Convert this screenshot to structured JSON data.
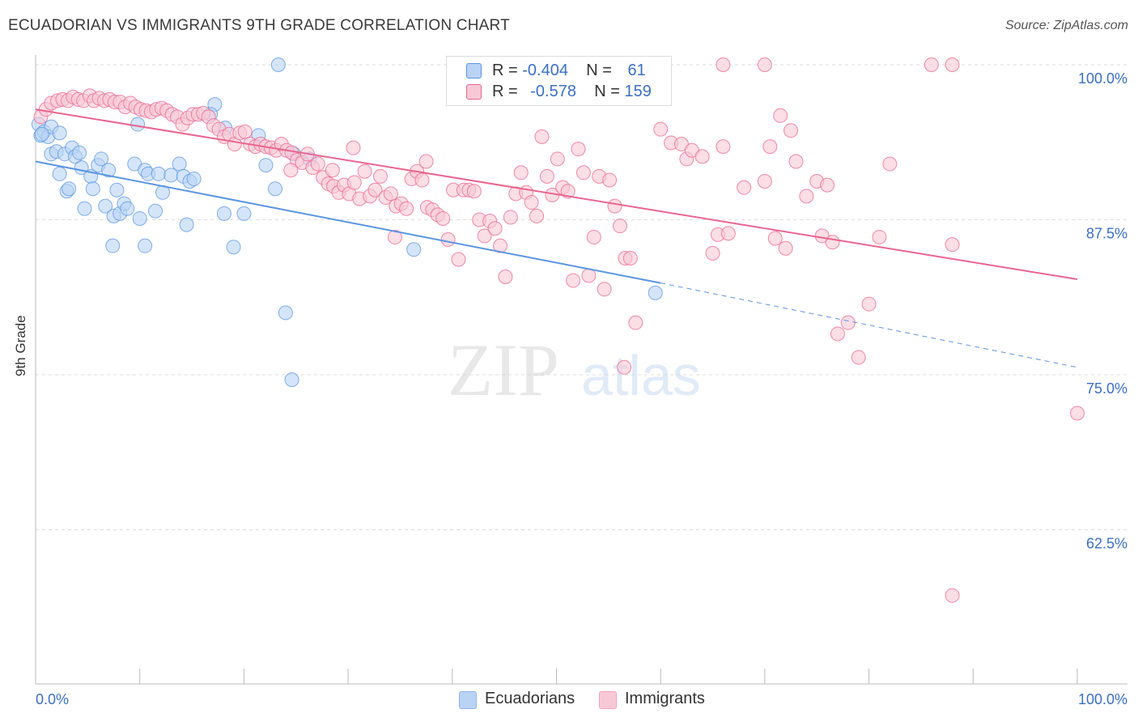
{
  "header": {
    "title": "ECUADORIAN VS IMMIGRANTS 9TH GRADE CORRELATION CHART",
    "source": "Source: ZipAtlas.com"
  },
  "legend": {
    "rows": [
      {
        "r_label": "R = ",
        "r_value": "-0.404",
        "n_label": "N = ",
        "n_value": "61",
        "color": "#a9c8f0"
      },
      {
        "r_label": "R = ",
        "r_value": "-0.578",
        "n_label": "N = ",
        "n_value": "159",
        "color": "#f7b9cb"
      }
    ]
  },
  "bottom_legend": {
    "items": [
      {
        "label": "Ecuadorians",
        "color": "#b9d3f5"
      },
      {
        "label": "Immigrants",
        "color": "#f9c8d6"
      }
    ]
  },
  "watermark": {
    "zip": "ZIP",
    "atlas": "atlas"
  },
  "chart_data": {
    "type": "scatter",
    "title": "ECUADORIAN VS IMMIGRANTS 9TH GRADE CORRELATION CHART",
    "xlabel": "",
    "ylabel": "9th Grade",
    "xlim": [
      0,
      100
    ],
    "ylim": [
      50,
      101.5
    ],
    "x_tick_labels": [
      "0.0%",
      "100.0%"
    ],
    "y_ticks": [
      100,
      87.5,
      75,
      62.5
    ],
    "y_tick_labels": [
      "100.0%",
      "87.5%",
      "75.0%",
      "62.5%"
    ],
    "grid": true,
    "legend_position": "top-center",
    "series": [
      {
        "name": "Ecuadorians",
        "color": "#5b95e0",
        "fill": "#b9d3f5",
        "r": -0.404,
        "n": 61,
        "trend": {
          "x0": 0,
          "y0": 92.2,
          "x1": 60,
          "y1": 82.4,
          "dashed_to_x": 100,
          "dashed_to_y": 75.6
        },
        "points": [
          [
            0.3,
            95.2
          ],
          [
            0.5,
            94.3
          ],
          [
            0.8,
            94.6
          ],
          [
            1.2,
            94.2
          ],
          [
            1.5,
            92.8
          ],
          [
            2,
            93
          ],
          [
            2.3,
            91.2
          ],
          [
            2.8,
            92.8
          ],
          [
            3,
            89.8
          ],
          [
            3.2,
            90
          ],
          [
            3.5,
            93.3
          ],
          [
            3.8,
            92.6
          ],
          [
            4.2,
            92.9
          ],
          [
            4.4,
            91.7
          ],
          [
            4.7,
            88.4
          ],
          [
            5.3,
            91
          ],
          [
            5.5,
            90
          ],
          [
            6,
            91.9
          ],
          [
            6.3,
            92.4
          ],
          [
            6.7,
            88.6
          ],
          [
            7,
            91.5
          ],
          [
            7.5,
            87.8
          ],
          [
            7.8,
            89.9
          ],
          [
            8.1,
            88
          ],
          [
            8.5,
            88.8
          ],
          [
            8.8,
            88.4
          ],
          [
            9.5,
            92
          ],
          [
            10,
            87.6
          ],
          [
            9.8,
            95.2
          ],
          [
            10.5,
            91.5
          ],
          [
            10.8,
            91.2
          ],
          [
            11.5,
            88.2
          ],
          [
            11.8,
            91.2
          ],
          [
            12.2,
            89.7
          ],
          [
            13,
            91.1
          ],
          [
            13.8,
            92
          ],
          [
            14.2,
            91
          ],
          [
            14.8,
            90.6
          ],
          [
            14.5,
            87.1
          ],
          [
            15.2,
            90.8
          ],
          [
            17.2,
            96.8
          ],
          [
            16.8,
            96
          ],
          [
            18.2,
            94.9
          ],
          [
            20,
            88
          ],
          [
            19,
            85.3
          ],
          [
            21.4,
            94.3
          ],
          [
            23.3,
            100
          ],
          [
            23,
            90
          ],
          [
            22.1,
            91.9
          ],
          [
            24,
            80
          ],
          [
            24.8,
            92.8
          ],
          [
            24.6,
            74.6
          ],
          [
            26.3,
            92.4
          ],
          [
            36.3,
            85.1
          ],
          [
            59.5,
            81.6
          ],
          [
            10.5,
            85.4
          ],
          [
            7.4,
            85.4
          ],
          [
            1.5,
            95
          ],
          [
            0.6,
            94.4
          ],
          [
            2.3,
            94.5
          ],
          [
            18.1,
            88
          ]
        ]
      },
      {
        "name": "Immigrants",
        "color": "#e8668f",
        "fill": "#f9c8d6",
        "r": -0.578,
        "n": 159,
        "trend": {
          "x0": 0,
          "y0": 96.4,
          "x1": 100,
          "y1": 82.7
        },
        "points": [
          [
            0.5,
            95.8
          ],
          [
            1,
            96.4
          ],
          [
            1.5,
            96.9
          ],
          [
            2.1,
            97.1
          ],
          [
            2.6,
            97.2
          ],
          [
            3.1,
            97.1
          ],
          [
            3.6,
            97.4
          ],
          [
            4.1,
            97.2
          ],
          [
            4.6,
            97.1
          ],
          [
            5.2,
            97.5
          ],
          [
            5.6,
            97.1
          ],
          [
            6.1,
            97.3
          ],
          [
            6.6,
            97.1
          ],
          [
            7.1,
            97.2
          ],
          [
            7.6,
            97
          ],
          [
            8.1,
            97
          ],
          [
            8.6,
            96.6
          ],
          [
            9.1,
            96.9
          ],
          [
            9.6,
            96.6
          ],
          [
            10.1,
            96.4
          ],
          [
            10.6,
            96.3
          ],
          [
            11.1,
            96.2
          ],
          [
            11.6,
            96.4
          ],
          [
            12.1,
            96.5
          ],
          [
            12.6,
            96.3
          ],
          [
            13.1,
            96
          ],
          [
            13.6,
            95.8
          ],
          [
            14.1,
            95.2
          ],
          [
            14.6,
            95.7
          ],
          [
            15.1,
            96
          ],
          [
            15.6,
            96
          ],
          [
            16.1,
            96.1
          ],
          [
            16.6,
            95.8
          ],
          [
            17.1,
            95.1
          ],
          [
            17.6,
            94.8
          ],
          [
            18.1,
            94.2
          ],
          [
            18.6,
            94.4
          ],
          [
            19.1,
            93.6
          ],
          [
            19.6,
            94.5
          ],
          [
            20.1,
            94.6
          ],
          [
            20.6,
            93.6
          ],
          [
            21.1,
            93.4
          ],
          [
            21.6,
            93.6
          ],
          [
            22.1,
            93.4
          ],
          [
            22.6,
            93.3
          ],
          [
            23.1,
            93.1
          ],
          [
            23.6,
            93.6
          ],
          [
            24.1,
            93.1
          ],
          [
            24.6,
            92.9
          ],
          [
            25.1,
            92.3
          ],
          [
            25.6,
            92.1
          ],
          [
            26.1,
            92.8
          ],
          [
            26.6,
            91.7
          ],
          [
            27.1,
            92
          ],
          [
            27.6,
            90.9
          ],
          [
            28.1,
            90.4
          ],
          [
            28.6,
            90.2
          ],
          [
            29.1,
            89.7
          ],
          [
            29.6,
            90.3
          ],
          [
            30.1,
            89.6
          ],
          [
            30.6,
            90.5
          ],
          [
            31.1,
            89.2
          ],
          [
            31.6,
            91.4
          ],
          [
            32.1,
            89.4
          ],
          [
            32.6,
            89.9
          ],
          [
            33.1,
            91
          ],
          [
            33.6,
            89.3
          ],
          [
            34.1,
            89.6
          ],
          [
            34.6,
            88.6
          ],
          [
            35.1,
            88.8
          ],
          [
            35.6,
            88.4
          ],
          [
            36.1,
            90.8
          ],
          [
            36.6,
            91.4
          ],
          [
            37.1,
            90.7
          ],
          [
            37.6,
            88.5
          ],
          [
            38.1,
            88.3
          ],
          [
            38.6,
            87.9
          ],
          [
            39.1,
            87.6
          ],
          [
            39.6,
            85.9
          ],
          [
            40.1,
            89.9
          ],
          [
            40.6,
            84.3
          ],
          [
            41.1,
            89.9
          ],
          [
            41.6,
            89.9
          ],
          [
            42.1,
            89.8
          ],
          [
            42.6,
            87.5
          ],
          [
            43.1,
            86.2
          ],
          [
            43.6,
            87.4
          ],
          [
            44.1,
            86.8
          ],
          [
            44.6,
            85.4
          ],
          [
            45.1,
            82.9
          ],
          [
            45.6,
            87.7
          ],
          [
            46.1,
            89.6
          ],
          [
            46.6,
            91.3
          ],
          [
            47.1,
            89.7
          ],
          [
            47.6,
            88.9
          ],
          [
            48.1,
            87.8
          ],
          [
            48.6,
            94.2
          ],
          [
            49.1,
            91
          ],
          [
            49.6,
            89.5
          ],
          [
            50.1,
            92.4
          ],
          [
            50.6,
            90.1
          ],
          [
            51.1,
            89.8
          ],
          [
            51.6,
            82.6
          ],
          [
            52.1,
            93.2
          ],
          [
            52.6,
            91.3
          ],
          [
            53.1,
            83
          ],
          [
            53.6,
            86.1
          ],
          [
            54.1,
            91
          ],
          [
            54.6,
            81.9
          ],
          [
            55.1,
            90.7
          ],
          [
            55.6,
            88.6
          ],
          [
            56.1,
            87
          ],
          [
            56.6,
            84.4
          ],
          [
            57.1,
            84.4
          ],
          [
            57.6,
            79.2
          ],
          [
            60,
            94.8
          ],
          [
            61,
            93.7
          ],
          [
            62,
            93.6
          ],
          [
            62.5,
            92.4
          ],
          [
            63,
            93.1
          ],
          [
            64,
            92.6
          ],
          [
            65,
            84.8
          ],
          [
            65.5,
            86.3
          ],
          [
            66,
            93.4
          ],
          [
            66.5,
            86.4
          ],
          [
            68,
            90.1
          ],
          [
            70,
            90.6
          ],
          [
            70.5,
            93.4
          ],
          [
            71,
            86
          ],
          [
            71.5,
            95.9
          ],
          [
            72,
            85.2
          ],
          [
            72.5,
            94.7
          ],
          [
            73,
            92.2
          ],
          [
            74,
            89.4
          ],
          [
            75,
            90.6
          ],
          [
            75.5,
            86.2
          ],
          [
            76,
            90.3
          ],
          [
            76.5,
            85.7
          ],
          [
            77,
            78.3
          ],
          [
            78,
            79.2
          ],
          [
            79,
            76.4
          ],
          [
            80,
            80.7
          ],
          [
            81,
            86.1
          ],
          [
            82,
            92
          ],
          [
            88,
            100
          ],
          [
            86,
            100
          ],
          [
            70,
            100
          ],
          [
            66,
            100
          ],
          [
            88,
            85.5
          ],
          [
            88,
            57.2
          ],
          [
            100,
            71.9
          ],
          [
            56.5,
            75.6
          ],
          [
            34.5,
            86.1
          ],
          [
            37.5,
            92.2
          ],
          [
            30.5,
            93.3
          ],
          [
            24.5,
            91.5
          ],
          [
            28.5,
            91.5
          ]
        ]
      }
    ]
  }
}
